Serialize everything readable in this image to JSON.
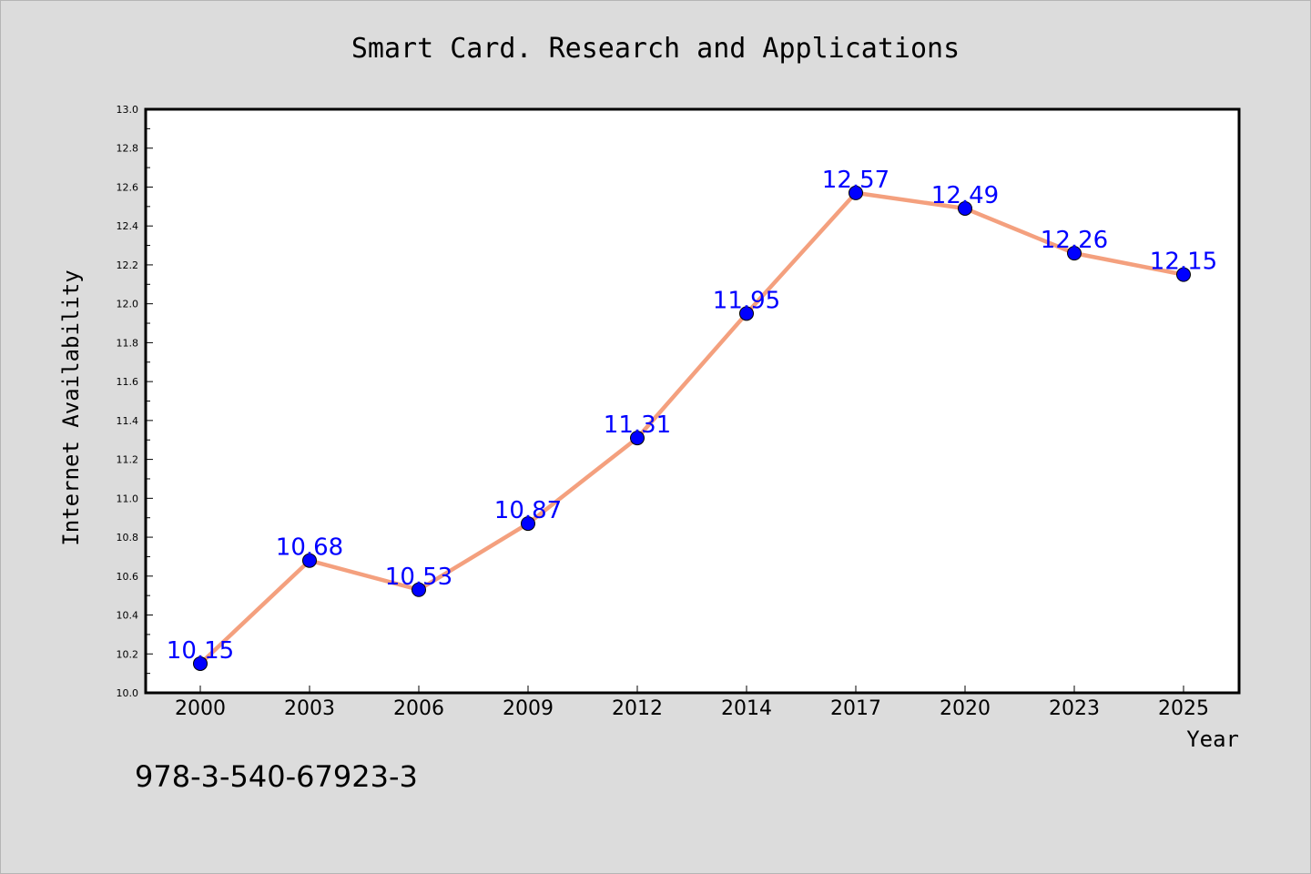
{
  "footer": {
    "isbn": "978-3-540-67923-3"
  },
  "colors": {
    "background": "#dcdcdc",
    "plot_background": "#ffffff",
    "line": "#f4a07e",
    "marker": "#0000ff",
    "data_label": "#0000ff",
    "text": "#000000"
  },
  "chart_data": {
    "type": "line",
    "title": "Smart Card. Research and Applications",
    "xlabel": "Year",
    "ylabel": "Internet Availability",
    "categories": [
      "2000",
      "2003",
      "2006",
      "2009",
      "2012",
      "2014",
      "2017",
      "2020",
      "2023",
      "2025"
    ],
    "series": [
      {
        "values": [
          10.15,
          10.68,
          10.53,
          10.87,
          11.31,
          11.95,
          12.57,
          12.49,
          12.26,
          12.15
        ]
      }
    ],
    "data_labels": [
      "10.15",
      "10.68",
      "10.53",
      "10.87",
      "11.31",
      "11.95",
      "12.57",
      "12.49",
      "12.26",
      "12.15"
    ],
    "ylim": [
      10.0,
      13.0
    ],
    "yticks": [
      "10.0",
      "10.2",
      "10.4",
      "10.6",
      "10.8",
      "11.0",
      "11.2",
      "11.4",
      "11.6",
      "11.8",
      "12.0",
      "12.2",
      "12.4",
      "12.6",
      "12.8",
      "13.0"
    ],
    "grid": false,
    "legend": false
  }
}
